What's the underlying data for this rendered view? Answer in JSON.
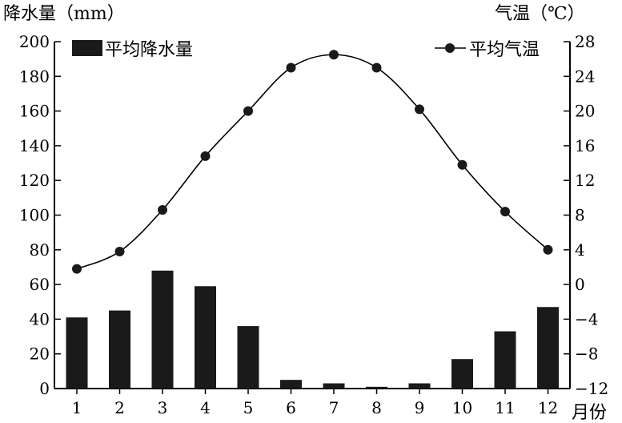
{
  "chart_data": {
    "type": "bar+line",
    "categories": [
      "1",
      "2",
      "3",
      "4",
      "5",
      "6",
      "7",
      "8",
      "9",
      "10",
      "11",
      "12"
    ],
    "x_unit": "月份",
    "series": [
      {
        "name": "平均降水量",
        "type": "bar",
        "axis": "left",
        "values": [
          41,
          45,
          68,
          59,
          36,
          5,
          3,
          1,
          3,
          17,
          33,
          47
        ]
      },
      {
        "name": "平均气温",
        "type": "line",
        "axis": "right",
        "values": [
          1.8,
          3.8,
          8.6,
          14.8,
          20.0,
          25.0,
          26.5,
          25.0,
          20.2,
          13.8,
          8.4,
          4.0
        ]
      }
    ],
    "y_left": {
      "label": "降水量（mm）",
      "min": 0,
      "max": 200,
      "step": 20,
      "ticks": [
        "0",
        "20",
        "40",
        "60",
        "80",
        "100",
        "120",
        "140",
        "160",
        "180",
        "200"
      ]
    },
    "y_right": {
      "label": "气温（℃）",
      "min": -12,
      "max": 28,
      "step": 4,
      "ticks": [
        "−12",
        "−8",
        "−4",
        "0",
        "4",
        "8",
        "12",
        "16",
        "20",
        "24",
        "28"
      ]
    },
    "grid": false,
    "legend_placement": "top"
  }
}
